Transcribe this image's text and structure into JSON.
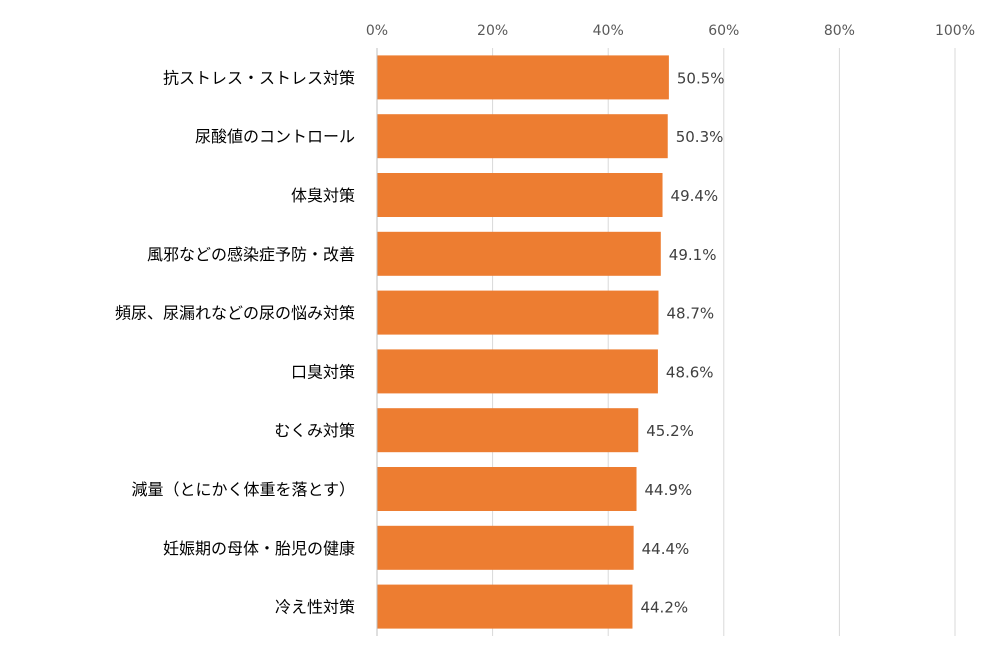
{
  "chart_data": {
    "type": "bar",
    "orientation": "horizontal",
    "title": "",
    "xlabel": "",
    "ylabel": "",
    "xlim": [
      0,
      100
    ],
    "x_ticks": [
      0,
      20,
      40,
      60,
      80,
      100
    ],
    "x_tick_labels": [
      "0%",
      "20%",
      "40%",
      "60%",
      "80%",
      "100%"
    ],
    "grid": true,
    "legend": "none",
    "categories": [
      "抗ストレス・ストレス対策",
      "尿酸値のコントロール",
      "体臭対策",
      "風邪などの感染症予防・改善",
      "頻尿、尿漏れなどの尿の悩み対策",
      "口臭対策",
      "むくみ対策",
      "減量（とにかく体重を落とす）",
      "妊娠期の母体・胎児の健康",
      "冷え性対策"
    ],
    "values": [
      50.5,
      50.3,
      49.4,
      49.1,
      48.7,
      48.6,
      45.2,
      44.9,
      44.4,
      44.2
    ],
    "value_labels": [
      "50.5%",
      "50.3%",
      "49.4%",
      "49.1%",
      "48.7%",
      "48.6%",
      "45.2%",
      "44.9%",
      "44.4%",
      "44.2%"
    ],
    "colors": {
      "bar": "#ED7D31",
      "grid": "#D9D9D9",
      "axis": "#BFBFBF",
      "tick_text": "#595959",
      "value_text": "#404040",
      "category_text": "#000000"
    }
  }
}
